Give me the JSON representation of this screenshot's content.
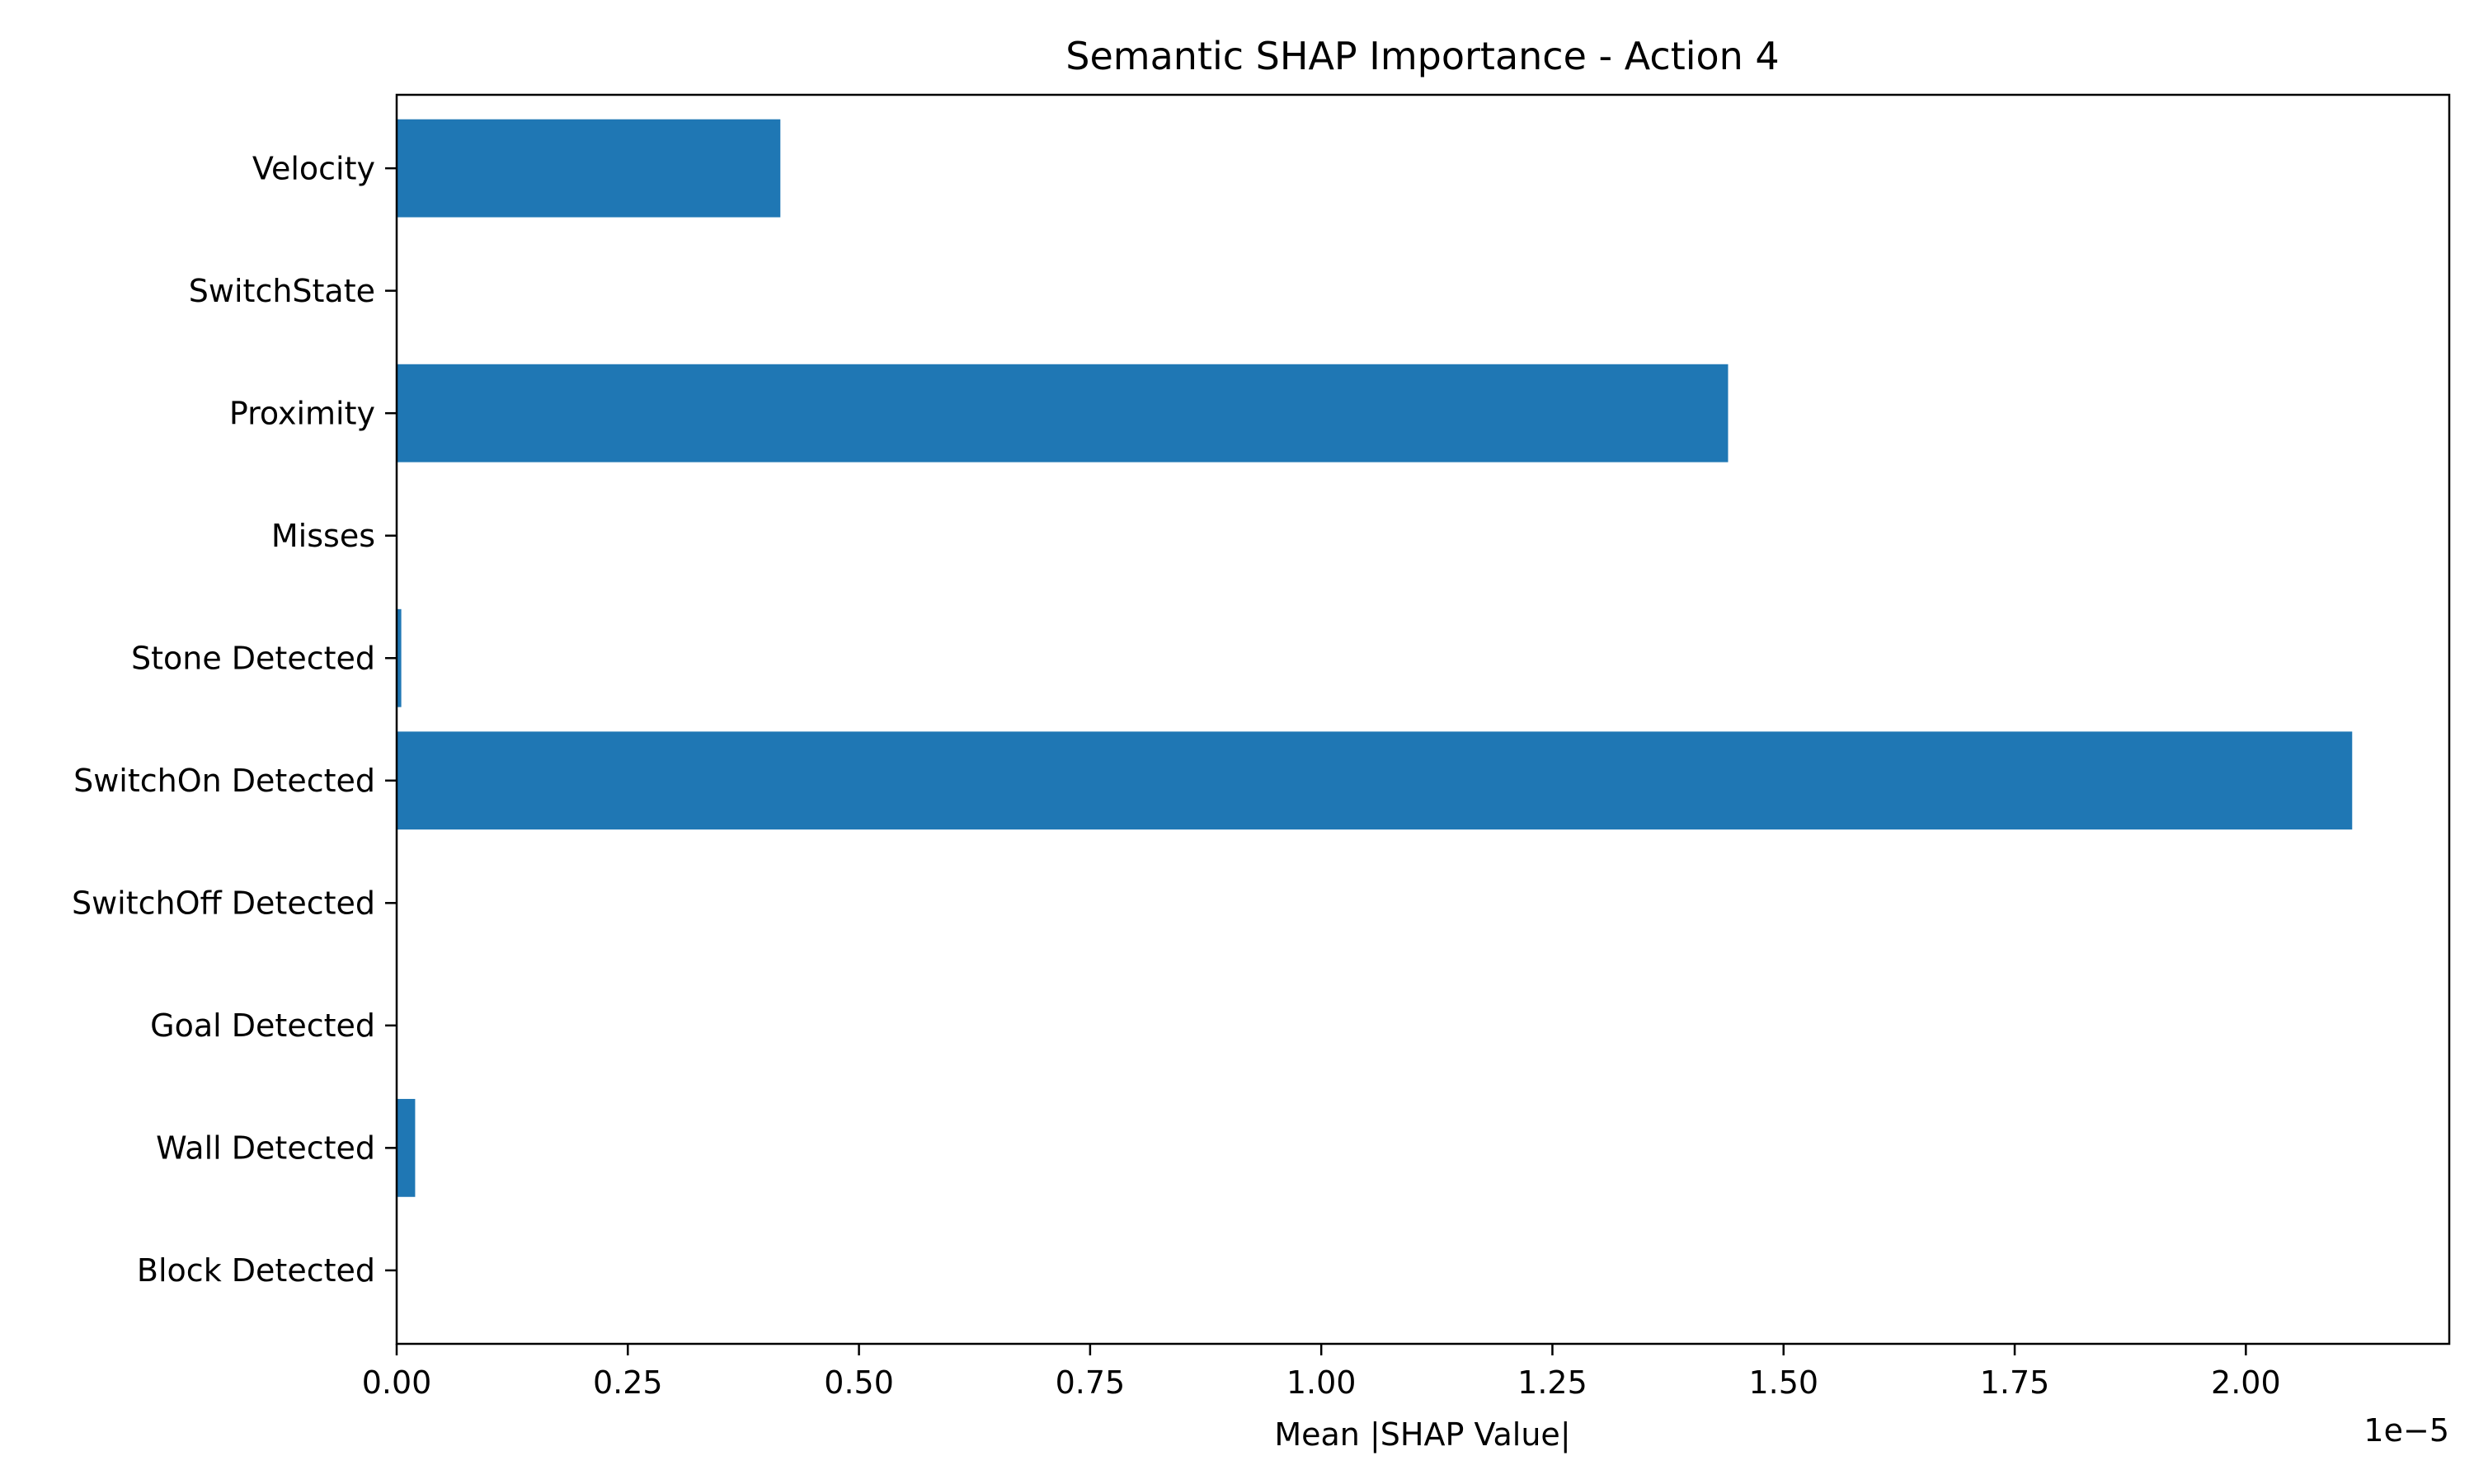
{
  "chart_data": {
    "type": "bar",
    "orientation": "horizontal",
    "title": "Semantic SHAP Importance - Action 4",
    "xlabel": "Mean |SHAP Value|",
    "ylabel": "",
    "x_scale_label": "1e−5",
    "x_scale_factor": 1e-05,
    "categories": [
      "Velocity",
      "SwitchState",
      "Proximity",
      "Misses",
      "Stone Detected",
      "SwitchOn Detected",
      "SwitchOff Detected",
      "Goal Detected",
      "Wall Detected",
      "Block Detected"
    ],
    "values": [
      0.415,
      0.0,
      1.44,
      0.0,
      0.005,
      2.115,
      0.0,
      0.0,
      0.02,
      0.0
    ],
    "xlim": [
      0,
      2.22
    ],
    "xticks": [
      0.0,
      0.25,
      0.5,
      0.75,
      1.0,
      1.25,
      1.5,
      1.75,
      2.0
    ],
    "xtick_labels": [
      "0.00",
      "0.25",
      "0.50",
      "0.75",
      "1.00",
      "1.25",
      "1.50",
      "1.75",
      "2.00"
    ],
    "bar_color": "#1f77b4",
    "grid": false,
    "legend": "none"
  }
}
